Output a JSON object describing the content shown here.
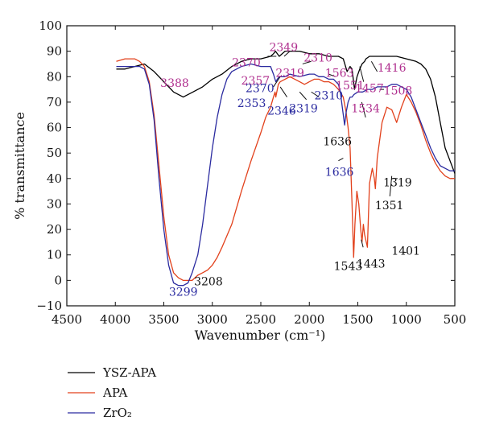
{
  "chart_data": {
    "type": "line",
    "xlabel": "Wavenumber (cm⁻¹)",
    "ylabel": "% transmittance",
    "xlim": [
      4500,
      500
    ],
    "ylim": [
      -10,
      100
    ],
    "x_ticks": [
      "4500",
      "4000",
      "3500",
      "3000",
      "2500",
      "2000",
      "1500",
      "1000",
      "500"
    ],
    "y_ticks": [
      "100",
      "90",
      "80",
      "70",
      "60",
      "50",
      "40",
      "30",
      "20",
      "10",
      "0",
      "−10"
    ],
    "legend_position": "bottom-left, below plot",
    "colors": {
      "ysz": "#000000",
      "apa": "#e2411c",
      "zro2": "#2b2ba0",
      "annot_magenta": "#b0308f"
    },
    "series": [
      {
        "name": "YSZ-APA",
        "color": "#000000",
        "x": [
          3990,
          3900,
          3800,
          3700,
          3600,
          3500,
          3400,
          3300,
          3200,
          3100,
          3000,
          2900,
          2800,
          2700,
          2600,
          2500,
          2400,
          2370,
          2349,
          2330,
          2310,
          2250,
          2100,
          2000,
          1900,
          1800,
          1700,
          1650,
          1610,
          1580,
          1560,
          1534,
          1508,
          1480,
          1457,
          1430,
          1416,
          1380,
          1300,
          1200,
          1100,
          1000,
          900,
          850,
          800,
          750,
          700,
          650,
          600,
          550,
          500
        ],
        "y": [
          83,
          83,
          84,
          85,
          82,
          78,
          74,
          72,
          74,
          76,
          79,
          81,
          84,
          86,
          87,
          87,
          88,
          89,
          90,
          89,
          88,
          90,
          90,
          89,
          89,
          88,
          88,
          87,
          82,
          84,
          83,
          75,
          80,
          83,
          85,
          86,
          87,
          88,
          88,
          88,
          88,
          87,
          86,
          85,
          83,
          79,
          72,
          62,
          52,
          47,
          42
        ]
      },
      {
        "name": "APA",
        "color": "#e2411c",
        "x": [
          3990,
          3900,
          3800,
          3750,
          3700,
          3650,
          3600,
          3550,
          3500,
          3450,
          3400,
          3350,
          3299,
          3250,
          3208,
          3150,
          3100,
          3050,
          3000,
          2950,
          2900,
          2800,
          2700,
          2600,
          2500,
          2450,
          2400,
          2370,
          2353,
          2346,
          2330,
          2319,
          2300,
          2250,
          2200,
          2150,
          2100,
          2050,
          2000,
          1950,
          1900,
          1850,
          1800,
          1750,
          1700,
          1650,
          1620,
          1600,
          1580,
          1560,
          1543,
          1530,
          1510,
          1490,
          1470,
          1457,
          1443,
          1430,
          1401,
          1380,
          1351,
          1330,
          1319,
          1300,
          1250,
          1200,
          1150,
          1100,
          1050,
          1000,
          950,
          900,
          850,
          800,
          750,
          700,
          650,
          600,
          550,
          500
        ],
        "y": [
          86,
          87,
          87,
          86,
          84,
          78,
          65,
          45,
          25,
          10,
          3,
          1,
          0,
          0,
          0,
          2,
          3,
          4,
          6,
          9,
          13,
          22,
          35,
          47,
          58,
          64,
          68,
          72,
          74,
          72,
          75,
          77,
          78,
          79,
          80,
          79,
          78,
          77,
          78,
          79,
          79,
          78,
          78,
          77,
          75,
          72,
          66,
          60,
          52,
          30,
          9,
          22,
          35,
          30,
          20,
          15,
          22,
          18,
          13,
          38,
          44,
          40,
          36,
          48,
          62,
          68,
          67,
          62,
          68,
          73,
          70,
          66,
          61,
          55,
          50,
          46,
          43,
          41,
          40,
          40
        ]
      },
      {
        "name": "ZrO₂",
        "color": "#2b2ba0",
        "x": [
          3990,
          3900,
          3800,
          3750,
          3700,
          3650,
          3600,
          3550,
          3500,
          3450,
          3400,
          3350,
          3299,
          3250,
          3208,
          3150,
          3100,
          3050,
          3000,
          2950,
          2900,
          2850,
          2800,
          2750,
          2700,
          2600,
          2500,
          2400,
          2370,
          2346,
          2330,
          2310,
          2250,
          2200,
          2100,
          2000,
          1950,
          1900,
          1850,
          1800,
          1750,
          1700,
          1680,
          1660,
          1636,
          1620,
          1600,
          1580,
          1560,
          1540,
          1500,
          1450,
          1400,
          1350,
          1300,
          1250,
          1200,
          1150,
          1100,
          1050,
          1000,
          950,
          900,
          850,
          800,
          750,
          700,
          650,
          600,
          550,
          500
        ],
        "y": [
          84,
          84,
          84,
          84,
          83,
          77,
          63,
          40,
          20,
          6,
          -1,
          -2,
          -2,
          -1,
          3,
          10,
          22,
          37,
          52,
          64,
          73,
          79,
          82,
          83,
          84,
          85,
          84,
          84,
          81,
          78,
          79,
          80,
          80,
          81,
          80,
          81,
          81,
          80,
          80,
          79,
          79,
          77,
          74,
          68,
          61,
          66,
          70,
          72,
          72,
          73,
          74,
          74,
          75,
          75,
          76,
          76,
          76,
          77,
          77,
          76,
          75,
          72,
          67,
          62,
          57,
          52,
          48,
          45,
          44,
          43,
          43
        ]
      }
    ],
    "annotations": [
      {
        "text": "3388",
        "x": 3388,
        "y": 76,
        "color": "#b0308f"
      },
      {
        "text": "2370",
        "x": 2650,
        "y": 84,
        "color": "#b0308f"
      },
      {
        "text": "2357",
        "x": 2555,
        "y": 77,
        "color": "#b0308f"
      },
      {
        "text": "2349",
        "x": 2265,
        "y": 90,
        "color": "#b0308f"
      },
      {
        "text": "2319",
        "x": 2200,
        "y": 80,
        "color": "#b0308f"
      },
      {
        "text": "2310",
        "x": 1910,
        "y": 86,
        "color": "#b0308f"
      },
      {
        "text": "1563",
        "x": 1690,
        "y": 80,
        "color": "#b0308f"
      },
      {
        "text": "1551",
        "x": 1580,
        "y": 75,
        "color": "#b0308f"
      },
      {
        "text": "1457",
        "x": 1380,
        "y": 74,
        "color": "#b0308f"
      },
      {
        "text": "1416",
        "x": 1150,
        "y": 82,
        "color": "#b0308f"
      },
      {
        "text": "1534",
        "x": 1420,
        "y": 66,
        "color": "#b0308f"
      },
      {
        "text": "1508",
        "x": 1085,
        "y": 73,
        "color": "#b0308f"
      },
      {
        "text": "2370",
        "x": 2510,
        "y": 74,
        "color": "#2b2ba0"
      },
      {
        "text": "2353",
        "x": 2595,
        "y": 68,
        "color": "#2b2ba0"
      },
      {
        "text": "2346",
        "x": 2285,
        "y": 65,
        "color": "#2b2ba0"
      },
      {
        "text": "2319",
        "x": 2060,
        "y": 66,
        "color": "#2b2ba0"
      },
      {
        "text": "2310",
        "x": 1800,
        "y": 71,
        "color": "#2b2ba0"
      },
      {
        "text": "1636",
        "x": 1690,
        "y": 41,
        "color": "#2b2ba0"
      },
      {
        "text": "3299",
        "x": 3299,
        "y": -6,
        "color": "#2b2ba0"
      },
      {
        "text": "3208",
        "x": 3040,
        "y": -2,
        "color": "#111111"
      },
      {
        "text": "1636",
        "x": 1710,
        "y": 53,
        "color": "#111111"
      },
      {
        "text": "1319",
        "x": 1090,
        "y": 37,
        "color": "#111111"
      },
      {
        "text": "1351",
        "x": 1175,
        "y": 28,
        "color": "#111111"
      },
      {
        "text": "1401",
        "x": 1005,
        "y": 10,
        "color": "#111111"
      },
      {
        "text": "1543",
        "x": 1600,
        "y": 4,
        "color": "#111111"
      },
      {
        "text": "1443",
        "x": 1365,
        "y": 5,
        "color": "#111111"
      }
    ]
  }
}
